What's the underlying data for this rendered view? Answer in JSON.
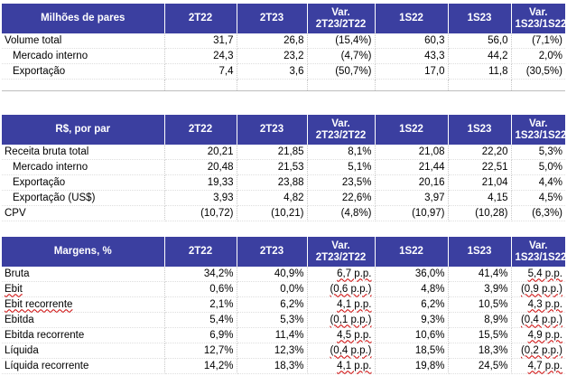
{
  "tables": [
    {
      "header": [
        "Milhões de pares",
        "2T22",
        "2T23",
        "Var.\n2T23/2T22",
        "1S22",
        "1S23",
        "Var.\n1S23/1S22"
      ],
      "rows": [
        {
          "label": "Volume total",
          "indent": false,
          "values": [
            "31,7",
            "26,8",
            "(15,4%)",
            "60,3",
            "56,0",
            "(7,1%)"
          ]
        },
        {
          "label": "Mercado interno",
          "indent": true,
          "values": [
            "24,3",
            "23,2",
            "(4,7%)",
            "43,3",
            "44,2",
            "2,0%"
          ]
        },
        {
          "label": "Exportação",
          "indent": true,
          "values": [
            "7,4",
            "3,6",
            "(50,7%)",
            "17,0",
            "11,8",
            "(30,5%)"
          ]
        }
      ]
    },
    {
      "header": [
        "R$, por par",
        "2T22",
        "2T23",
        "Var.\n2T23/2T22",
        "1S22",
        "1S23",
        "Var.\n1S23/1S22"
      ],
      "rows": [
        {
          "label": "Receita bruta total",
          "indent": false,
          "values": [
            "20,21",
            "21,85",
            "8,1%",
            "21,08",
            "22,20",
            "5,3%"
          ]
        },
        {
          "label": "Mercado interno",
          "indent": true,
          "values": [
            "20,48",
            "21,53",
            "5,1%",
            "21,44",
            "22,51",
            "5,0%"
          ]
        },
        {
          "label": "Exportação",
          "indent": true,
          "values": [
            "19,33",
            "23,88",
            "23,5%",
            "20,16",
            "21,04",
            "4,4%"
          ]
        },
        {
          "label": "Exportação (US$)",
          "indent": true,
          "values": [
            "3,93",
            "4,82",
            "22,6%",
            "3,97",
            "4,15",
            "4,5%"
          ]
        },
        {
          "label": "CPV",
          "indent": false,
          "values": [
            "(10,72)",
            "(10,21)",
            "(4,8%)",
            "(10,97)",
            "(10,28)",
            "(6,3%)"
          ]
        }
      ]
    },
    {
      "header": [
        "Margens, %",
        "2T22",
        "2T23",
        "Var.\n2T23/2T22",
        "1S22",
        "1S23",
        "Var.\n1S23/1S22"
      ],
      "rows": [
        {
          "label": "Bruta",
          "indent": false,
          "values": [
            "34,2%",
            "40,9%",
            "6,7 p.p.",
            "36,0%",
            "41,4%",
            "5,4 p.p."
          ]
        },
        {
          "label": "Ebit",
          "indent": false,
          "values": [
            "0,6%",
            "0,0%",
            "(0,6 p.p.)",
            "4,8%",
            "3,9%",
            "(0,9 p.p.)"
          ]
        },
        {
          "label": "Ebit recorrente",
          "indent": false,
          "values": [
            "2,1%",
            "6,2%",
            "4,1 p.p.",
            "6,2%",
            "10,5%",
            "4,3 p.p."
          ]
        },
        {
          "label": "Ebitda",
          "indent": false,
          "values": [
            "5,4%",
            "5,3%",
            "(0,1 p.p.)",
            "9,3%",
            "8,9%",
            "(0,4 p.p.)"
          ]
        },
        {
          "label": "Ebitda recorrente",
          "indent": false,
          "values": [
            "6,9%",
            "11,4%",
            "4,5 p.p.",
            "10,6%",
            "15,5%",
            "4,9 p.p."
          ]
        },
        {
          "label": "Líquida",
          "indent": false,
          "values": [
            "12,7%",
            "12,3%",
            "(0,4 p.p.)",
            "18,5%",
            "18,3%",
            "(0,2 p.p.)"
          ]
        },
        {
          "label": "Líquida recorrente",
          "indent": false,
          "values": [
            "14,2%",
            "18,3%",
            "4,1 p.p.",
            "19,8%",
            "24,5%",
            "4,7 p.p."
          ]
        }
      ]
    }
  ]
}
